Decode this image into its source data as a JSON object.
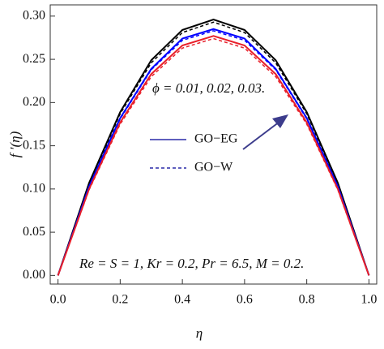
{
  "chart_data": {
    "type": "line",
    "x_label": "η",
    "y_label": "f ′(η)",
    "x": [
      0,
      0.1,
      0.2,
      0.3,
      0.4,
      0.5,
      0.6,
      0.7,
      0.8,
      0.9,
      1.0
    ],
    "series": [
      {
        "color": "#000000",
        "dashed": false,
        "values": [
          0,
          0.107,
          0.189,
          0.249,
          0.284,
          0.296,
          0.284,
          0.249,
          0.189,
          0.107,
          0
        ]
      },
      {
        "color": "#000000",
        "dashed": true,
        "values": [
          0,
          0.105,
          0.187,
          0.246,
          0.281,
          0.293,
          0.281,
          0.246,
          0.187,
          0.105,
          0
        ]
      },
      {
        "color": "#0000ff",
        "dashed": false,
        "values": [
          0,
          0.103,
          0.182,
          0.239,
          0.274,
          0.285,
          0.274,
          0.239,
          0.182,
          0.103,
          0
        ]
      },
      {
        "color": "#0000ff",
        "dashed": true,
        "values": [
          0,
          0.102,
          0.181,
          0.238,
          0.272,
          0.283,
          0.272,
          0.238,
          0.181,
          0.102,
          0
        ]
      },
      {
        "color": "#e8202a",
        "dashed": false,
        "values": [
          0,
          0.1,
          0.177,
          0.233,
          0.266,
          0.277,
          0.266,
          0.233,
          0.177,
          0.1,
          0
        ]
      },
      {
        "color": "#e8202a",
        "dashed": true,
        "values": [
          0,
          0.099,
          0.175,
          0.23,
          0.263,
          0.274,
          0.263,
          0.23,
          0.175,
          0.099,
          0
        ]
      }
    ],
    "legend": [
      {
        "label": "GO−EG",
        "color": "#2a2aa8",
        "dashed": false
      },
      {
        "label": "GO−W",
        "color": "#2a2aa8",
        "dashed": true
      }
    ],
    "annotations": [
      "ϕ = 0.01, 0.02, 0.03.",
      "Re = S = 1, Kr = 0.2, Pr = 6.5, M = 0.2."
    ],
    "xlim": [
      -0.025,
      1.025
    ],
    "ylim": [
      -0.01,
      0.313
    ],
    "xticks": [
      {
        "value": 0,
        "label": "0.0"
      },
      {
        "value": 0.2,
        "label": "0.2"
      },
      {
        "value": 0.4,
        "label": "0.4"
      },
      {
        "value": 0.6,
        "label": "0.6"
      },
      {
        "value": 0.8,
        "label": "0.8"
      },
      {
        "value": 1,
        "label": "1.0"
      }
    ],
    "yticks": [
      {
        "value": 0,
        "label": "0.00"
      },
      {
        "value": 0.05,
        "label": "0.05"
      },
      {
        "value": 0.1,
        "label": "0.10"
      },
      {
        "value": 0.15,
        "label": "0.15"
      },
      {
        "value": 0.2,
        "label": "0.20"
      },
      {
        "value": 0.25,
        "label": "0.25"
      },
      {
        "value": 0.3,
        "label": "0.30"
      }
    ]
  }
}
